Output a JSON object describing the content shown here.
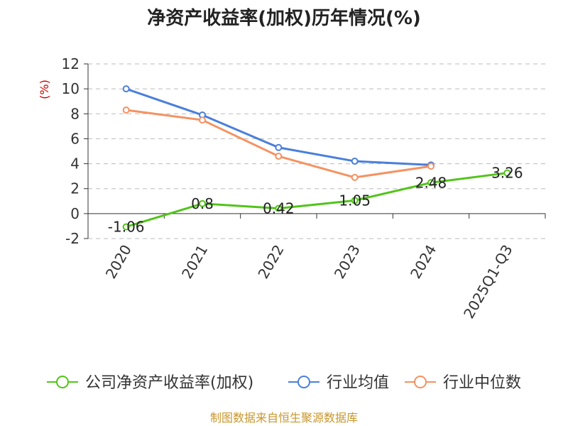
{
  "chart_data": {
    "type": "line",
    "title": "净资产收益率(加权)历年情况(%)",
    "ylabel": "(%)",
    "categories": [
      "2020",
      "2021",
      "2022",
      "2023",
      "2024",
      "2025Q1-Q3"
    ],
    "yticks": [
      -2,
      0,
      2,
      4,
      6,
      8,
      10,
      12
    ],
    "ylim": [
      -2,
      12
    ],
    "grid": true,
    "legend_position": "bottom",
    "series": [
      {
        "name": "公司净资产收益率(加权)",
        "color": "#52c41a",
        "values": [
          -1.06,
          0.8,
          0.42,
          1.05,
          2.48,
          3.26
        ],
        "labels": [
          "-1.06",
          "0.8",
          "0.42",
          "1.05",
          "2.48",
          "3.26"
        ]
      },
      {
        "name": "行业均值",
        "color": "#4a7fdb",
        "values": [
          10.0,
          7.9,
          5.3,
          4.2,
          3.9,
          null
        ]
      },
      {
        "name": "行业中位数",
        "color": "#f59262",
        "values": [
          8.3,
          7.5,
          4.6,
          2.9,
          3.8,
          null
        ]
      }
    ],
    "source": "制图数据来自恒生聚源数据库"
  }
}
